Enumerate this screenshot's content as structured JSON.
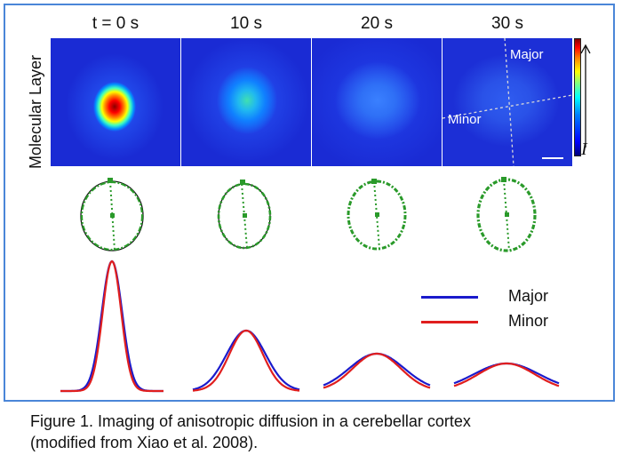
{
  "figure": {
    "row_label": "Molecular Layer",
    "time_labels": [
      "t = 0 s",
      "10 s",
      "20 s",
      "30 s"
    ],
    "colorbar_symbol": "I",
    "axis_labels": {
      "major": "Major",
      "minor": "Minor"
    },
    "legend": [
      {
        "label": "Major",
        "color": "#1a1acc"
      },
      {
        "label": "Minor",
        "color": "#e01e1e"
      }
    ],
    "caption_line1": "Figure 1. Imaging of anisotropic diffusion in a cerebellar cortex",
    "caption_line2": "(modified from Xiao et al. 2008)."
  },
  "colors": {
    "frame": "#4a86d8",
    "background_field": "#1a2bd4",
    "outline_green": "#2a9a2a"
  }
}
